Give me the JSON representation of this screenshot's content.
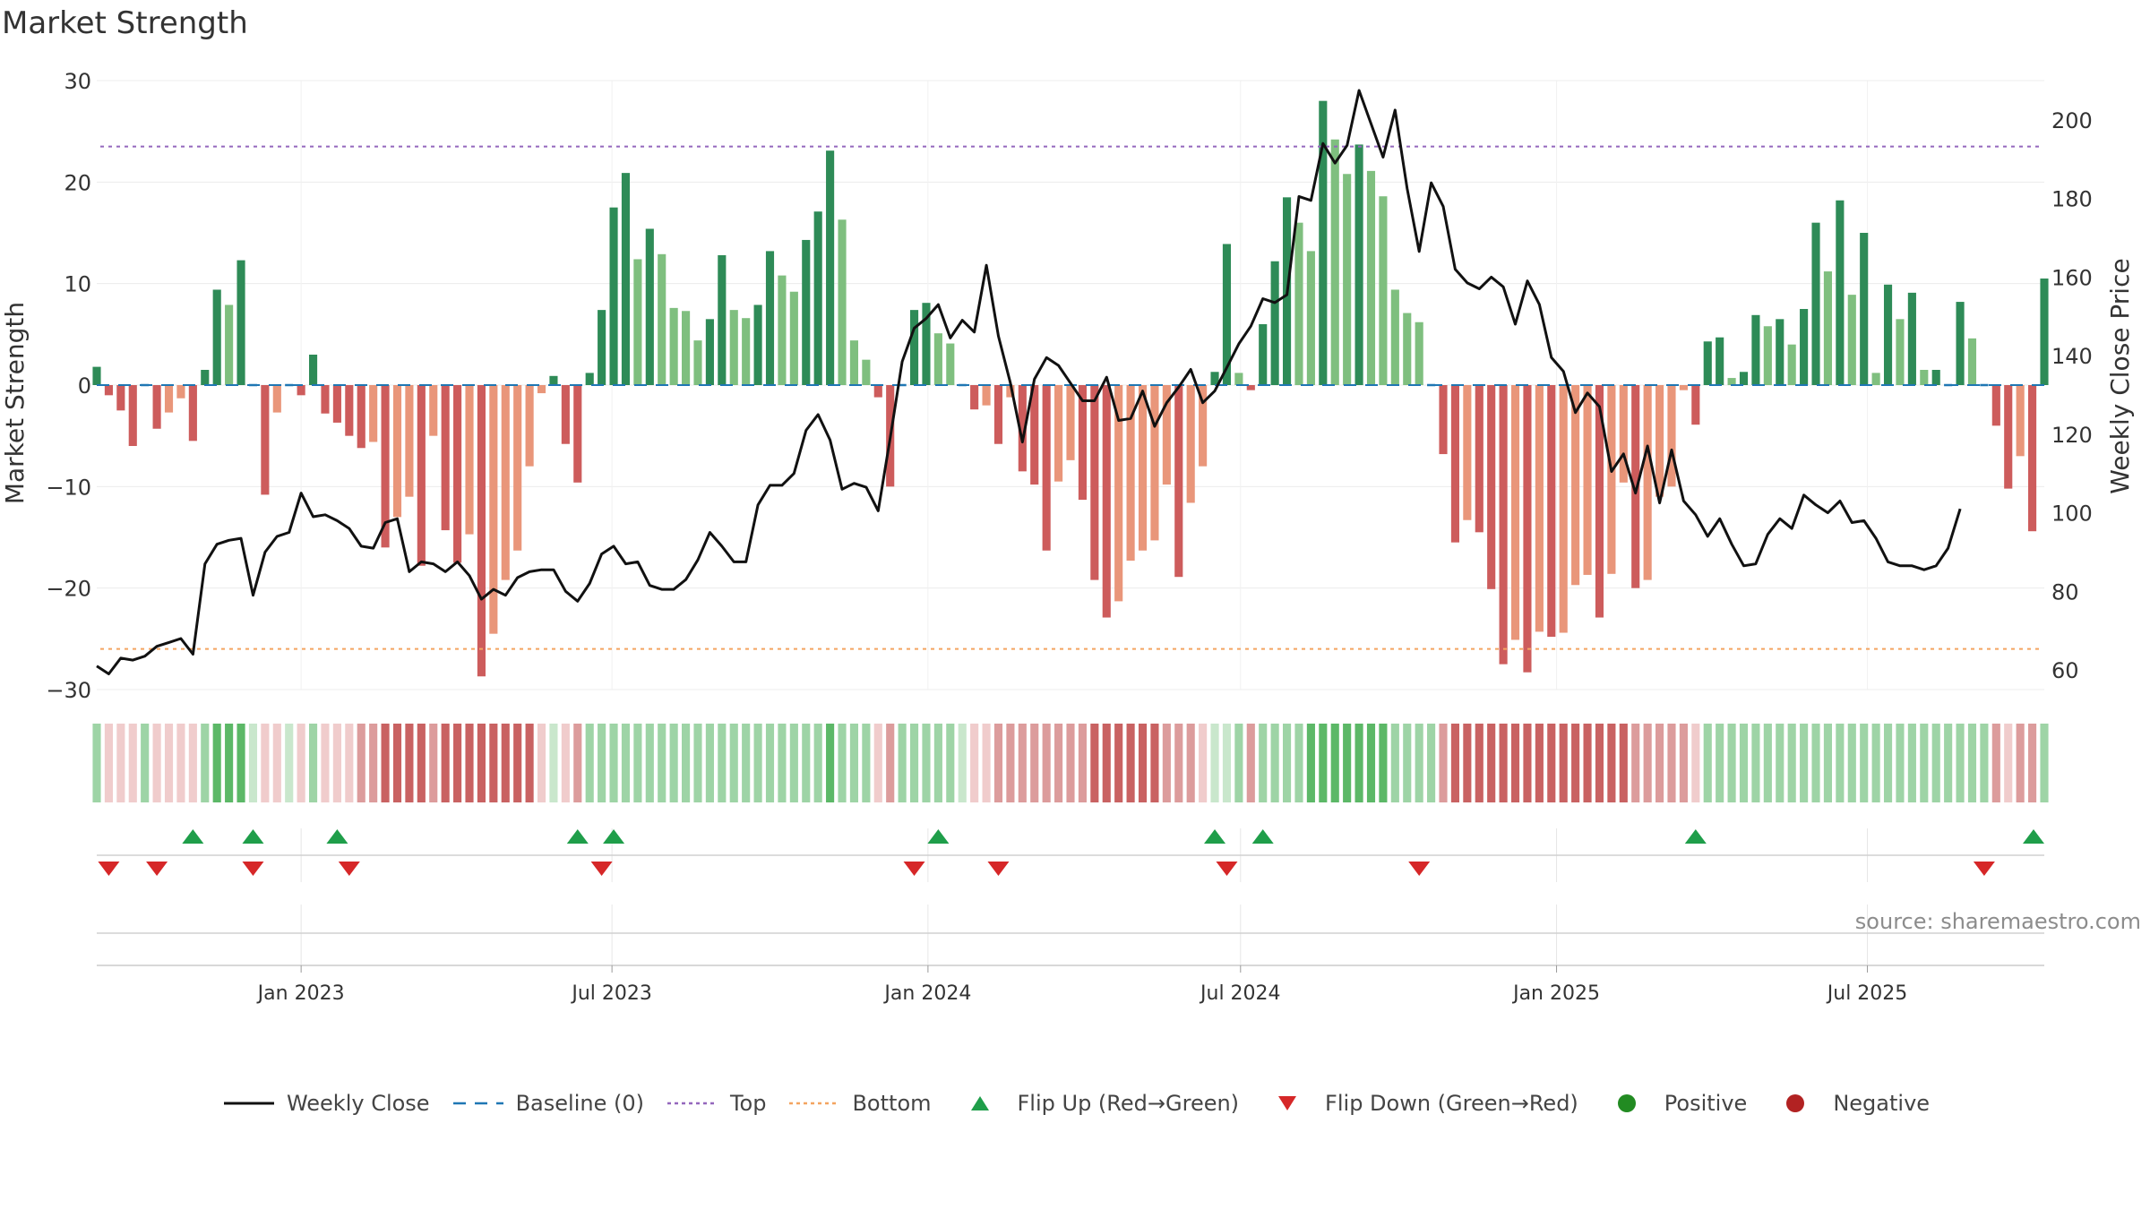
{
  "title": "Market Strength",
  "source": "source: sharemaestro.com",
  "colors": {
    "strong_green": "#2e8b57",
    "light_green": "#7fbf7f",
    "strong_red": "#cd5c5c",
    "light_red": "#e9967a",
    "line": "#111111",
    "baseline": "#1f77b4",
    "top": "#9467bd",
    "bottom": "#f4a460",
    "flip_up": "#1f9e4a",
    "flip_down": "#d62728",
    "positive": "#228b22",
    "negative": "#b22222"
  },
  "legend": [
    {
      "label": "Weekly Close",
      "icon": "line-solid",
      "color": "#111111"
    },
    {
      "label": "Baseline (0)",
      "icon": "line-dashed",
      "color": "#1f77b4"
    },
    {
      "label": "Top",
      "icon": "line-dotted",
      "color": "#9467bd"
    },
    {
      "label": "Bottom",
      "icon": "line-dotted",
      "color": "#f4a460"
    },
    {
      "label": "Flip Up (Red→Green)",
      "icon": "triangle-up",
      "color": "#1f9e4a"
    },
    {
      "label": "Flip Down (Green→Red)",
      "icon": "triangle-down",
      "color": "#d62728"
    },
    {
      "label": "Positive",
      "icon": "circle",
      "color": "#228b22"
    },
    {
      "label": "Negative",
      "icon": "circle",
      "color": "#b22222"
    }
  ],
  "chart_data": {
    "type": "bar",
    "title": "Market Strength",
    "ylabel_left": "Market Strength",
    "ylabel_right": "Weekly Close Price",
    "ylim_left": [
      -30,
      30
    ],
    "ylim_right": [
      55,
      210
    ],
    "yticks_left": [
      30,
      20,
      10,
      0,
      -10,
      -20,
      -30
    ],
    "yticks_right": [
      60,
      80,
      100,
      120,
      140,
      160,
      180,
      200
    ],
    "xrange": [
      "2022-09-04",
      "2025-10-12"
    ],
    "xticks": [
      {
        "date": "2023-01-01",
        "label": "Jan 2023"
      },
      {
        "date": "2023-07-01",
        "label": "Jul 2023"
      },
      {
        "date": "2024-01-01",
        "label": "Jan 2024"
      },
      {
        "date": "2024-07-01",
        "label": "Jul 2024"
      },
      {
        "date": "2025-01-01",
        "label": "Jan 2025"
      },
      {
        "date": "2025-07-01",
        "label": "Jul 2025"
      }
    ],
    "top_line": 23.5,
    "bottom_line": -26,
    "grid": true,
    "legend_position": "bottom",
    "strength_bars": [
      1.8,
      -1,
      -2.5,
      -6,
      0,
      -4.3,
      -2.7,
      -1.3,
      -5.5,
      1.5,
      9.4,
      7.9,
      12.3,
      0,
      -10.8,
      -2.7,
      0,
      -1,
      3,
      -2.8,
      -3.7,
      -5,
      -6.2,
      -5.6,
      -16,
      -13,
      -11,
      -17.8,
      -5,
      -14.3,
      -17.5,
      -14.7,
      -28.7,
      -24.5,
      -19.2,
      -16.3,
      -8,
      -0.8,
      0.9,
      -5.8,
      -9.6,
      1.2,
      7.4,
      17.5,
      20.9,
      12.4,
      15.4,
      12.9,
      7.6,
      7.3,
      4.4,
      6.5,
      12.8,
      7.4,
      6.6,
      7.9,
      13.2,
      10.8,
      9.2,
      14.3,
      17.1,
      23.1,
      16.3,
      4.4,
      2.5,
      -1.2,
      -10,
      0,
      7.4,
      8.1,
      5.1,
      4.1,
      0,
      -2.4,
      -2,
      -5.8,
      -1.2,
      -8.5,
      -9.8,
      -16.3,
      -9.5,
      -7.4,
      -11.3,
      -19.2,
      -22.9,
      -21.3,
      -17.3,
      -16.3,
      -15.3,
      -9.8,
      -18.9,
      -11.6,
      -8,
      1.3,
      13.9,
      1.2,
      -0.5,
      6,
      12.2,
      18.5,
      16,
      13.2,
      28,
      24.2,
      20.8,
      23.7,
      21.1,
      18.6,
      9.4,
      7.1,
      6.2,
      0,
      -6.8,
      -15.5,
      -13.3,
      -14.5,
      -20.1,
      -27.5,
      -25.1,
      -28.3,
      -24.3,
      -24.8,
      -24.4,
      -19.7,
      -18.7,
      -22.9,
      -18.6,
      -9.6,
      -20,
      -19.2,
      -11,
      -10,
      -0.5,
      -3.9,
      4.3,
      4.7,
      0.7,
      1.3,
      6.9,
      5.8,
      6.5,
      4,
      7.5,
      16,
      11.2,
      18.2,
      8.9,
      15,
      1.2,
      9.9,
      6.5,
      9.1,
      1.5,
      1.5,
      0,
      8.2,
      4.6,
      0,
      -4,
      -10.2,
      -7,
      -14.4,
      10.5
    ],
    "weekly_close": [
      61,
      59,
      63,
      62.5,
      63.5,
      66,
      67,
      68,
      64,
      87,
      92,
      93,
      93.5,
      79,
      90,
      94,
      95,
      105,
      99,
      99.5,
      98,
      96,
      91.5,
      91,
      97.5,
      98.5,
      85,
      87.5,
      87,
      85,
      87.5,
      84,
      78,
      80.5,
      79,
      83.5,
      85,
      85.5,
      85.5,
      80,
      77.5,
      82,
      89.5,
      91.5,
      87,
      87.5,
      81.5,
      80.5,
      80.5,
      83,
      88,
      95,
      91.5,
      87.5,
      87.5,
      102,
      107,
      107,
      110,
      121,
      125,
      118.5,
      106,
      107.5,
      106.5,
      100.5,
      119,
      138.5,
      147,
      149.5,
      153,
      144.5,
      149,
      146,
      163,
      145,
      133,
      118,
      134,
      139.5,
      137.5,
      133,
      128.5,
      128.5,
      134.5,
      123.5,
      124,
      131,
      122,
      128,
      132,
      136.5,
      128,
      131,
      137,
      143,
      147.5,
      154.5,
      153.5,
      155.5,
      180.5,
      179.5,
      194,
      189,
      193.5,
      207.5,
      199,
      190.5,
      202.5,
      182.5,
      166.5,
      184,
      178,
      162,
      158.5,
      157,
      160,
      157.5,
      148,
      159,
      153,
      139.5,
      136,
      125.5,
      130.5,
      127,
      110.5,
      115,
      105,
      117,
      102.5,
      116,
      103,
      99.5,
      94,
      98.5,
      92,
      86.5,
      87,
      94.5,
      98.5,
      96,
      104.5,
      102,
      100,
      103,
      97.5,
      98,
      93.5,
      87.5,
      86.5,
      86.5,
      85.5,
      86.5,
      91,
      101
    ],
    "lower_strength_band": [
      2,
      1,
      1,
      1,
      2,
      1,
      1,
      1,
      1,
      2,
      3,
      3,
      3,
      1,
      1,
      1,
      1,
      1,
      2,
      1,
      1,
      1,
      2,
      2,
      3,
      3,
      3,
      3,
      2,
      3,
      3,
      3,
      3,
      3,
      3,
      3,
      3,
      1,
      1,
      1,
      2,
      2,
      2,
      2,
      2,
      2,
      2,
      2,
      2,
      2,
      2,
      2,
      2,
      2,
      2,
      2,
      2,
      2,
      2,
      2,
      2,
      3,
      2,
      2,
      2,
      1,
      2,
      2,
      2,
      2,
      2,
      2,
      1,
      1,
      1,
      2,
      2,
      2,
      2,
      2,
      2,
      2,
      2,
      3,
      3,
      3,
      3,
      3,
      3,
      2,
      2,
      2,
      1,
      1,
      1,
      2,
      2,
      2,
      2,
      2,
      2,
      3,
      3,
      3,
      3,
      3,
      3,
      3,
      2,
      2,
      2,
      2,
      2,
      3,
      3,
      3,
      3,
      3,
      3,
      3,
      3,
      3,
      3,
      3,
      3,
      3,
      3,
      3,
      2,
      2,
      2,
      2,
      2,
      1,
      2,
      2,
      2,
      2,
      2,
      2,
      2,
      2,
      2,
      2,
      2,
      2,
      2,
      2,
      2,
      2,
      2,
      2,
      2,
      2,
      2,
      2,
      2,
      2,
      2,
      1,
      2,
      2,
      2,
      2,
      2
    ],
    "flip_up_dates": [
      "2022-10-30",
      "2022-12-04",
      "2023-01-22",
      "2023-06-11",
      "2023-07-02",
      "2024-01-07",
      "2024-06-16",
      "2024-07-14",
      "2025-03-23",
      "2025-10-12"
    ],
    "flip_down_dates": [
      "2022-09-11",
      "2022-10-09",
      "2022-12-04",
      "2023-01-29",
      "2023-06-25",
      "2023-12-24",
      "2024-02-11",
      "2024-06-23",
      "2024-10-13",
      "2025-09-07"
    ]
  }
}
